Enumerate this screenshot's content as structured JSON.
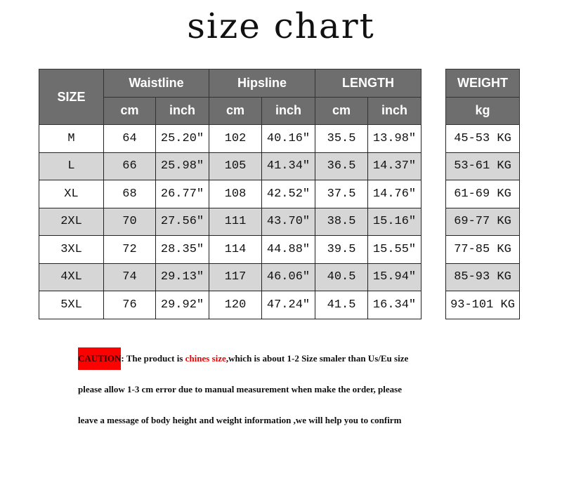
{
  "title": "size chart",
  "headers": {
    "size": "SIZE",
    "waist": "Waistline",
    "hips": "Hipsline",
    "length": "LENGTH",
    "weight": "WEIGHT",
    "cm": "cm",
    "inch": "inch",
    "kg": "kg"
  },
  "rows": [
    [
      "M",
      "64",
      "25.20″",
      "102",
      "40.16″",
      "35.5",
      "13.98″",
      "45-53 KG"
    ],
    [
      "L",
      "66",
      "25.98″",
      "105",
      "41.34″",
      "36.5",
      "14.37″",
      "53-61 KG"
    ],
    [
      "XL",
      "68",
      "26.77″",
      "108",
      "42.52″",
      "37.5",
      "14.76″",
      "61-69 KG"
    ],
    [
      "2XL",
      "70",
      "27.56″",
      "111",
      "43.70″",
      "38.5",
      "15.16″",
      "69-77 KG"
    ],
    [
      "3XL",
      "72",
      "28.35″",
      "114",
      "44.88″",
      "39.5",
      "15.55″",
      "77-85 KG"
    ],
    [
      "4XL",
      "74",
      "29.13″",
      "117",
      "46.06″",
      "40.5",
      "15.94″",
      "85-93 KG"
    ],
    [
      "5XL",
      "76",
      "29.92″",
      "120",
      "47.24″",
      "41.5",
      "16.34″",
      "93-101 KG"
    ]
  ],
  "caution": {
    "label": "CAUTION",
    "line1_a": ":  The product is ",
    "line1_red": "chines size",
    "line1_b": ",which is about 1-2 Size smaler than Us/Eu size",
    "line2": "please allow 1-3 cm error due to manual measurement when make the order, please",
    "line3": "leave a message of body height and weight information ,we will help you to confirm"
  },
  "colors": {
    "header_bg": "#6e6e6e",
    "alt_row": "#d6d6d6",
    "caution_bg": "#ff0000",
    "highlight": "#ee0000"
  }
}
